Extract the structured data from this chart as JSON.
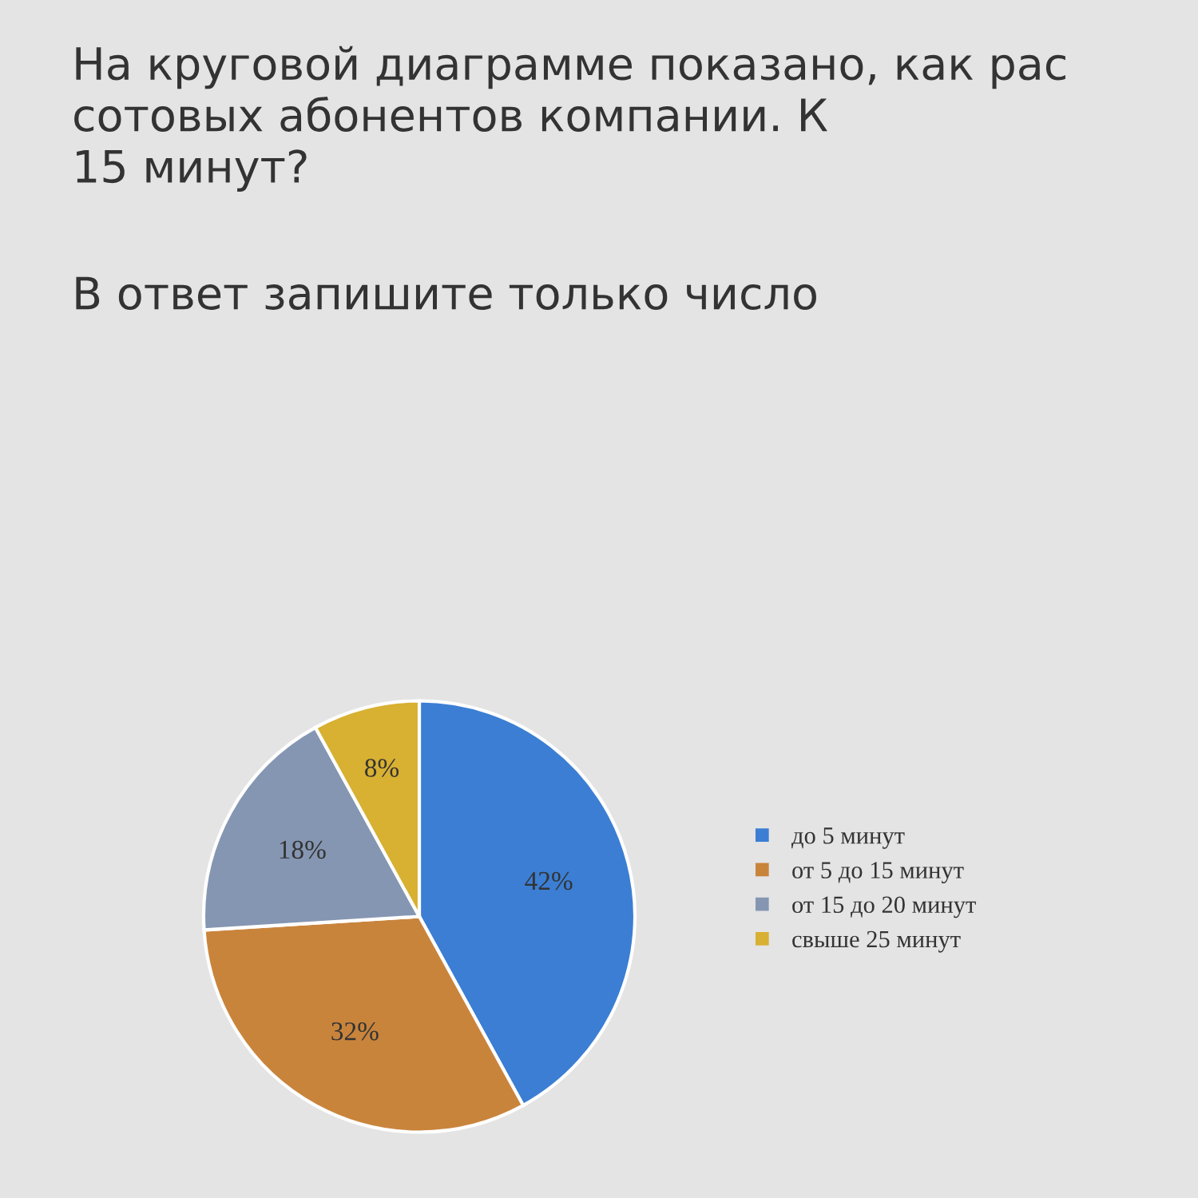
{
  "chart_data": {
    "type": "pie",
    "title": "На круговой диаграмме показано, как рас\nсотовых абонентов компании. К\n15 минут?",
    "subtitle": "В ответ запишите только число",
    "categories": [
      "до 5 минут",
      "от 5 до 15 минут",
      "от 15 до 20 минут",
      "свыше 25 минут"
    ],
    "values": [
      42,
      32,
      18,
      8
    ],
    "colors": [
      "#3b7ed4",
      "#c9843c",
      "#8596b2",
      "#d8b032"
    ],
    "value_labels": [
      "42%",
      "32%",
      "18%",
      "8%"
    ],
    "legend": "right"
  }
}
